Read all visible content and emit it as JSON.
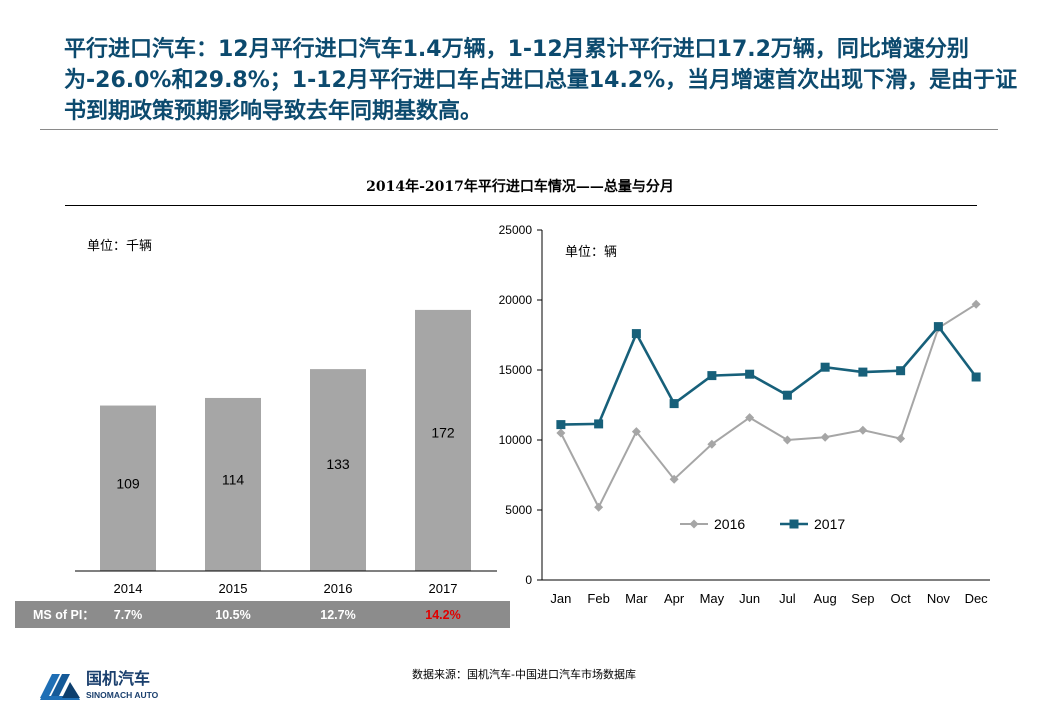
{
  "headline": "平行进口汽车：12月平行进口汽车1.4万辆，1-12月累计平行进口17.2万辆，同比增速分别为-26.0%和29.8%；1-12月平行进口车占进口总量14.2%，当月增速首次出现下滑，是由于证书到期政策预期影响导致去年同期基数高。",
  "chart_section_title": "2014年-2017年平行进口车情况——总量与分月",
  "chart_data": [
    {
      "type": "bar",
      "unit_label": "单位：千辆",
      "categories": [
        "2014",
        "2015",
        "2016",
        "2017"
      ],
      "values": [
        109,
        114,
        133,
        172
      ],
      "ylim": [
        0,
        195
      ],
      "bar_color": "#a6a6a6",
      "ms_row": {
        "label": "MS of PI：",
        "values": [
          "7.7%",
          "10.5%",
          "12.7%",
          "14.2%"
        ],
        "highlight_color": "#e00000"
      }
    },
    {
      "type": "line",
      "unit_label": "单位：辆",
      "categories": [
        "Jan",
        "Feb",
        "Mar",
        "Apr",
        "May",
        "Jun",
        "Jul",
        "Aug",
        "Sep",
        "Oct",
        "Nov",
        "Dec"
      ],
      "ylim": [
        0,
        25000
      ],
      "yticks": [
        0,
        5000,
        10000,
        15000,
        20000,
        25000
      ],
      "series": [
        {
          "name": "2016",
          "color": "#a6a6a6",
          "marker": "diamond",
          "values": [
            10500,
            5200,
            10600,
            7200,
            9700,
            11600,
            10000,
            10200,
            10700,
            10100,
            18000,
            19700
          ]
        },
        {
          "name": "2017",
          "color": "#17607a",
          "marker": "square",
          "values": [
            11100,
            11150,
            17600,
            12600,
            14600,
            14700,
            13200,
            15200,
            14850,
            14950,
            18100,
            14500
          ]
        }
      ]
    }
  ],
  "footer": {
    "logo_cn": "国机汽车",
    "logo_en": "SINOMACH AUTO",
    "source": "数据来源：国机汽车-中国进口汽车市场数据库"
  }
}
